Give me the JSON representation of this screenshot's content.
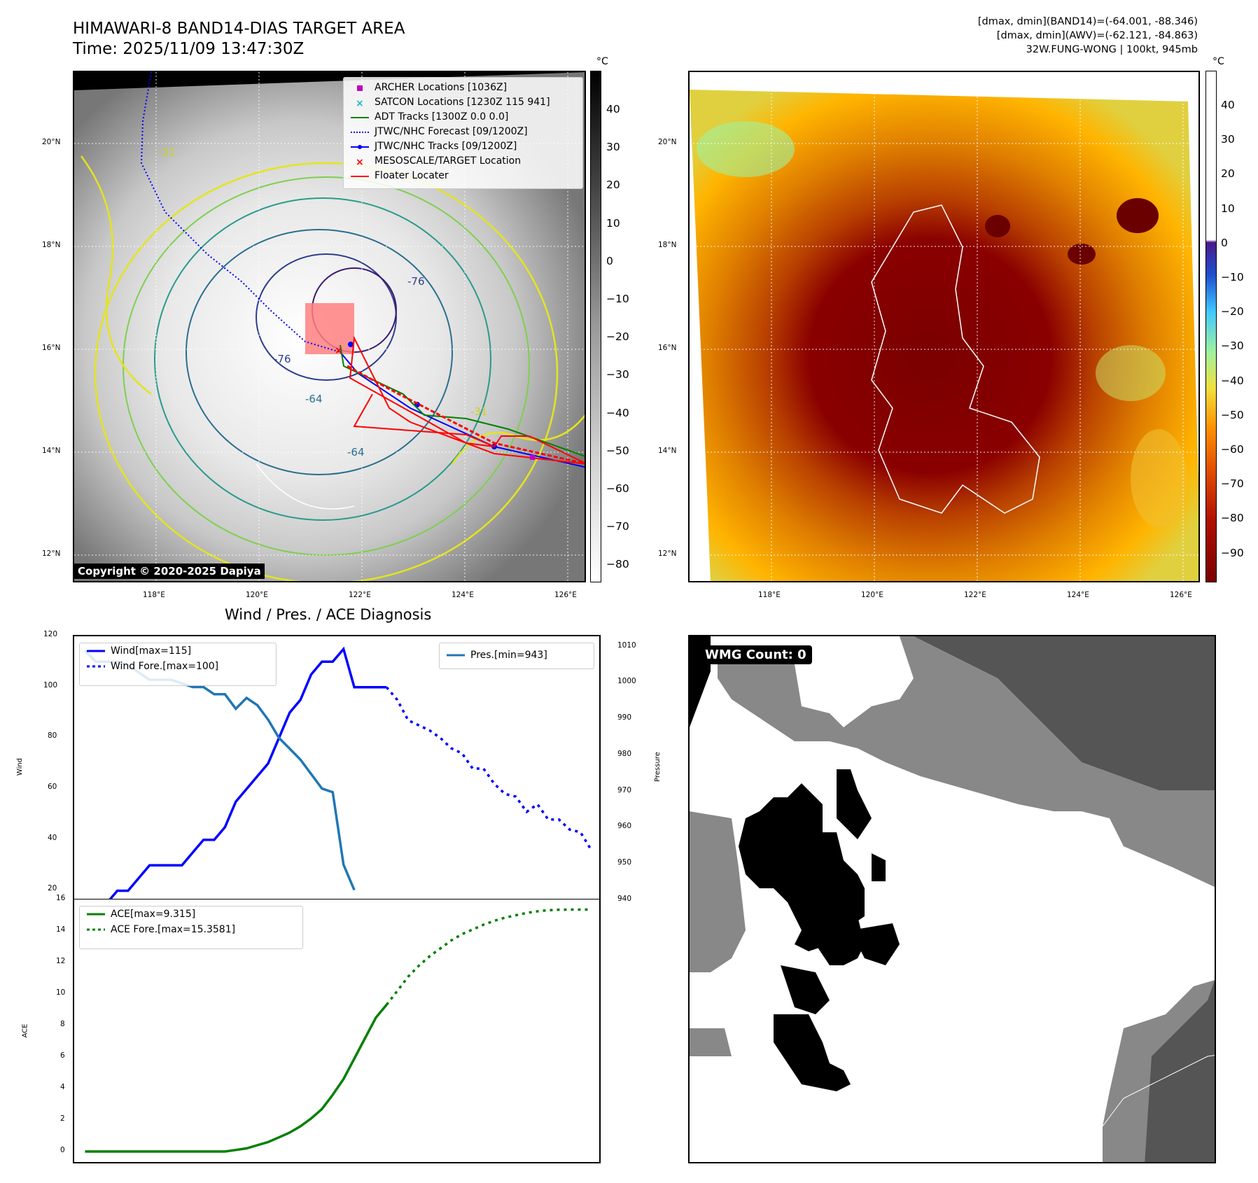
{
  "header": {
    "title_line1": "HIMAWARI-8 BAND14-DIAS TARGET AREA",
    "title_line2": "Time: 2025/11/09 13:47:30Z",
    "info_line1": "[dmax, dmin](BAND14)=(-64.001, -88.346)",
    "info_line2": "[dmax, dmin](AWV)=(-62.121, -84.863)",
    "info_line3": "32W.FUNG-WONG | 100kt, 945mb"
  },
  "map_axes": {
    "lat_ticks": [
      "20°N",
      "18°N",
      "16°N",
      "14°N",
      "12°N"
    ],
    "lon_ticks": [
      "118°E",
      "120°E",
      "122°E",
      "124°E",
      "126°E"
    ]
  },
  "ir_panel": {
    "legend": [
      {
        "label": "ARCHER Locations [1036Z]",
        "color": "#c000c0",
        "icon": "square-marker-icon"
      },
      {
        "label": "SATCON Locations [1230Z 115 941]",
        "color": "#17bfbf",
        "icon": "x-marker-icon"
      },
      {
        "label": "ADT Tracks [1300Z 0.0 0.0]",
        "color": "#008000",
        "icon": "solid-line-icon"
      },
      {
        "label": "JTWC/NHC Forecast [09/1200Z]",
        "color": "#0000ff",
        "icon": "dotted-line-icon"
      },
      {
        "label": "JTWC/NHC Tracks [09/1200Z]",
        "color": "#0000ff",
        "icon": "line-dot-icon"
      },
      {
        "label": "MESOSCALE/TARGET Location",
        "color": "#ff0000",
        "icon": "x-marker-icon"
      },
      {
        "label": "Floater Locater",
        "color": "#ff0000",
        "icon": "solid-line-icon"
      }
    ],
    "copyright": "Copyright © 2020-2025 Dapiya",
    "contour_labels": [
      "-64",
      "-64",
      "-76",
      "-76",
      "-31",
      "-31"
    ],
    "colorbar": {
      "unit": "°C",
      "ticks": [
        "40",
        "30",
        "20",
        "10",
        "0",
        "−10",
        "−20",
        "−30",
        "−40",
        "−50",
        "−60",
        "−70",
        "−80"
      ]
    }
  },
  "awv_panel": {
    "colorbar": {
      "unit": "°C",
      "ticks": [
        "40",
        "30",
        "20",
        "10",
        "0",
        "−10",
        "−20",
        "−30",
        "−40",
        "−50",
        "−60",
        "−70",
        "−80",
        "−90"
      ]
    }
  },
  "diag_title": "Wind / Pres. / ACE Diagnosis",
  "wmg_label": "WMG Count: 0",
  "chart_data": [
    {
      "type": "line",
      "title": "Wind / Pres. / ACE Diagnosis",
      "ylabel": "Wind",
      "y2label": "Pressure",
      "ylim": [
        16,
        120
      ],
      "y2lim": [
        940,
        1013
      ],
      "yticks": [
        "120",
        "100",
        "80",
        "60",
        "40",
        "20"
      ],
      "y2ticks": [
        "1010",
        "1000",
        "990",
        "980",
        "970",
        "960",
        "950",
        "940"
      ],
      "series": [
        {
          "name": "Wind[max=115]",
          "color": "#0000ff",
          "style": "solid",
          "axis": "left",
          "x": [
            0,
            1,
            2,
            3,
            4,
            5,
            6,
            7,
            8,
            9,
            10,
            11,
            12,
            13,
            14,
            15,
            16,
            17,
            18
          ],
          "y": [
            15,
            15,
            15,
            20,
            20,
            25,
            30,
            30,
            30,
            30,
            35,
            40,
            40,
            45,
            55,
            60,
            65,
            70,
            80
          ]
        },
        {
          "name": "",
          "color": "#0000ff",
          "style": "solid",
          "axis": "left",
          "x": [
            18,
            19,
            20,
            21,
            22,
            23,
            24,
            25,
            26,
            27,
            28
          ],
          "y": [
            80,
            90,
            95,
            105,
            110,
            110,
            115,
            100,
            100,
            100,
            100
          ]
        },
        {
          "name": "Wind Fore.[max=100]",
          "color": "#0000ff",
          "style": "dotted",
          "axis": "left",
          "x": [
            28,
            29,
            30,
            31,
            32,
            33,
            34,
            35,
            36,
            37,
            38,
            39,
            40,
            41,
            42,
            43,
            44,
            45,
            46,
            47
          ],
          "y": [
            100,
            95,
            87,
            85,
            83,
            80,
            76,
            74,
            68,
            68,
            62,
            58,
            57,
            51,
            54,
            48,
            48,
            44,
            43,
            36
          ]
        },
        {
          "name": "Pres.[min=943]",
          "color": "#1f77b4",
          "style": "solid",
          "axis": "right",
          "x": [
            0,
            1,
            2,
            3,
            4,
            5,
            6,
            7,
            8,
            9,
            10,
            11,
            12,
            13,
            14,
            15,
            16,
            17,
            18,
            19,
            20,
            21,
            22,
            23,
            24,
            25
          ],
          "y": [
            1009,
            1006,
            1006,
            1006,
            1005,
            1003,
            1001,
            1001,
            1001,
            1000,
            999,
            999,
            997,
            997,
            993,
            996,
            994,
            990,
            985,
            982,
            979,
            975,
            971,
            970,
            950,
            943
          ]
        }
      ]
    },
    {
      "type": "line",
      "ylabel": "ACE",
      "ylim": [
        -0.8,
        16
      ],
      "yticks": [
        "16",
        "14",
        "12",
        "10",
        "8",
        "6",
        "4",
        "2",
        "0"
      ],
      "series": [
        {
          "name": "ACE[max=9.315]",
          "color": "#008000",
          "style": "solid",
          "x": [
            0,
            1,
            2,
            3,
            4,
            5,
            6,
            7,
            8,
            9,
            10,
            11,
            12,
            13,
            14,
            15,
            16,
            17,
            18,
            19,
            20,
            21,
            22,
            23,
            24,
            25,
            26,
            27,
            28
          ],
          "y": [
            0,
            0,
            0,
            0,
            0,
            0,
            0,
            0,
            0,
            0,
            0,
            0,
            0,
            0,
            0.1,
            0.2,
            0.4,
            0.6,
            0.9,
            1.2,
            1.6,
            2.1,
            2.7,
            3.6,
            4.6,
            5.9,
            7.2,
            8.5,
            9.315
          ]
        },
        {
          "name": "ACE Fore.[max=15.3581]",
          "color": "#008000",
          "style": "dotted",
          "x": [
            28,
            29,
            30,
            31,
            32,
            33,
            34,
            35,
            36,
            37,
            38,
            39,
            40,
            41,
            42,
            43,
            44,
            45,
            46,
            47
          ],
          "y": [
            9.315,
            10.2,
            11.1,
            11.8,
            12.4,
            12.9,
            13.4,
            13.8,
            14.1,
            14.4,
            14.65,
            14.85,
            15.0,
            15.15,
            15.25,
            15.32,
            15.35,
            15.36,
            15.36,
            15.3581
          ]
        }
      ]
    }
  ]
}
